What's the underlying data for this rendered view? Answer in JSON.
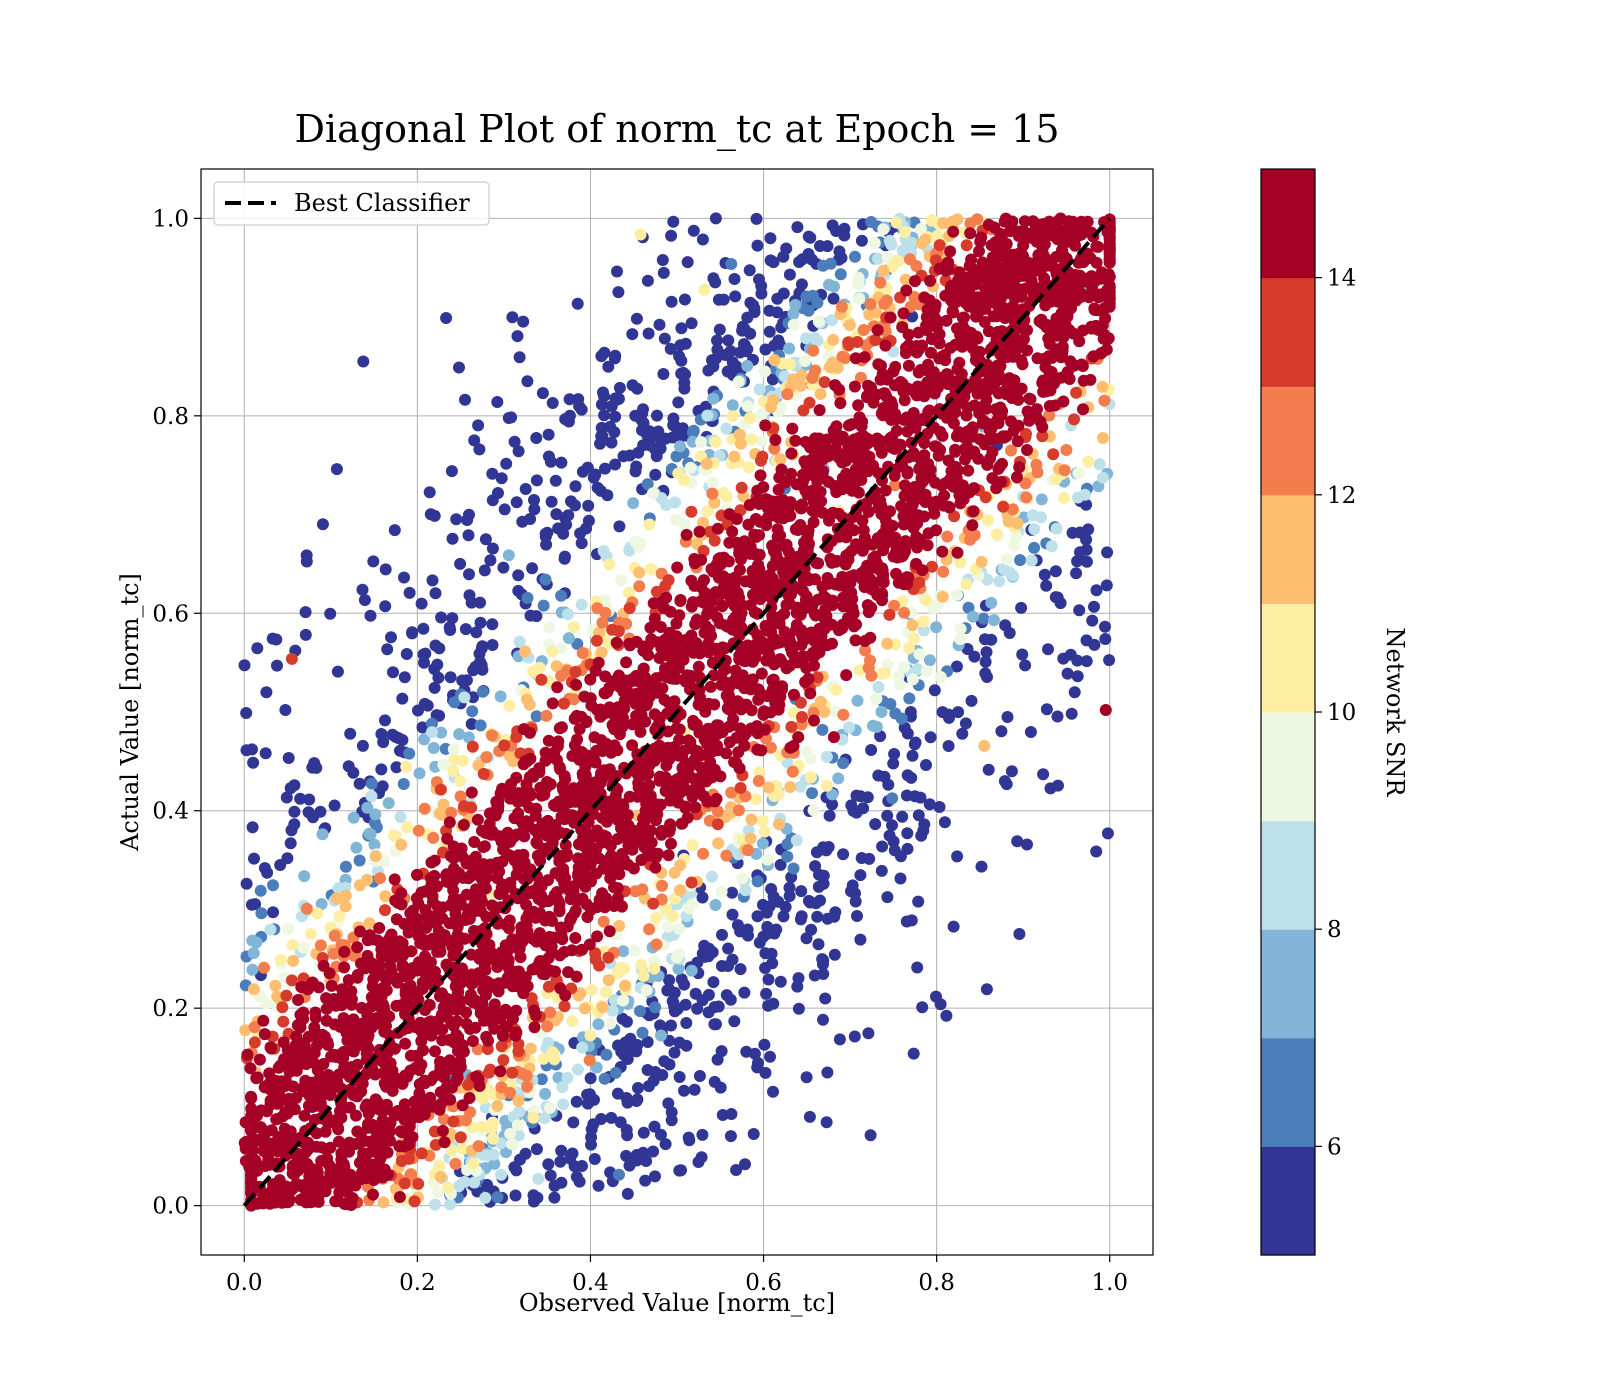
{
  "chart_data": {
    "type": "scatter",
    "title": "Diagonal Plot of norm_tc at Epoch = 15",
    "xlabel": "Observed Value [norm_tc]",
    "ylabel": "Actual Value [norm_tc]",
    "xlim": [
      -0.05,
      1.05
    ],
    "ylim": [
      -0.05,
      1.05
    ],
    "xticks": [
      "0.0",
      "0.2",
      "0.4",
      "0.6",
      "0.8",
      "1.0"
    ],
    "yticks": [
      "0.0",
      "0.2",
      "0.4",
      "0.6",
      "0.8",
      "1.0"
    ],
    "grid": true,
    "legend": {
      "placement": "top-left",
      "entries": [
        "Best Classifier"
      ]
    },
    "reference_line": {
      "name": "Best Classifier",
      "x": [
        0.0,
        1.0
      ],
      "y": [
        0.0,
        1.0
      ],
      "style": "dashed",
      "color": "#000000"
    },
    "colorbar": {
      "label": "Network SNR",
      "range": [
        5,
        15
      ],
      "ticks": [
        "6",
        "8",
        "10",
        "12",
        "14"
      ],
      "colors": [
        "#313695",
        "#4575b4",
        "#74add1",
        "#abd9e9",
        "#e0f3f8",
        "#fee090",
        "#fdae61",
        "#f46d43",
        "#d73027",
        "#a50026"
      ],
      "colors_display": [
        "#313695",
        "#4a7dba",
        "#80b5d8",
        "#bde0eb",
        "#eef7e2",
        "#feeea2",
        "#fdbf6f",
        "#f47d4d",
        "#d73b2b",
        "#a50026"
      ]
    },
    "points_description": {
      "x_range": [
        0.0,
        1.0
      ],
      "y_range": [
        0.0,
        1.0
      ],
      "high_snr_band_halfwidth": 0.12
    }
  }
}
